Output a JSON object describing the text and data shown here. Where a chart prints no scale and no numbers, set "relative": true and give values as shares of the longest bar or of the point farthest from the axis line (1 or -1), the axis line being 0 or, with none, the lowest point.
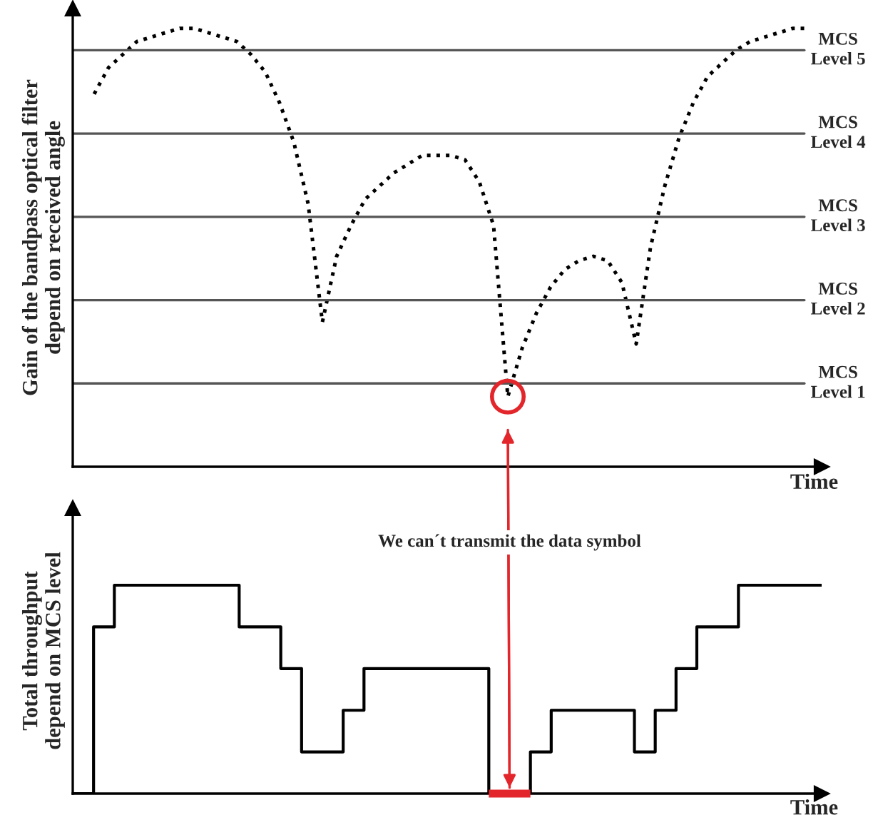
{
  "chart_data": [
    {
      "type": "line",
      "relative": true,
      "ylabel": "Gain of the bandpass optical filter\ndepend on received angle",
      "xlabel": "Time",
      "line_style": "dotted",
      "categories": [
        null,
        null,
        null,
        null,
        null,
        null,
        null,
        null,
        null,
        null,
        null,
        null,
        null,
        null,
        null,
        null,
        null,
        null,
        null,
        null,
        null,
        null,
        null,
        null,
        null,
        null,
        null,
        null,
        null,
        null,
        null,
        null,
        null,
        null,
        null,
        null,
        null,
        null,
        null,
        null,
        null,
        null,
        null,
        null,
        null,
        null,
        null,
        null,
        null,
        null,
        null
      ],
      "series": [
        {
          "color": "#000000",
          "values": [
            0.85,
            0.91,
            0.94,
            0.97,
            0.98,
            0.99,
            1,
            1,
            0.99,
            0.98,
            0.97,
            0.94,
            0.9,
            0.83,
            0.74,
            0.6,
            0.33,
            0.48,
            0.55,
            0.61,
            0.64,
            0.67,
            0.69,
            0.71,
            0.71,
            0.71,
            0.7,
            0.65,
            0.55,
            0.16,
            0.27,
            0.35,
            0.41,
            0.45,
            0.47,
            0.48,
            0.47,
            0.42,
            0.28,
            0.5,
            0.64,
            0.75,
            0.83,
            0.89,
            0.92,
            0.95,
            0.97,
            0.98,
            0.99,
            1,
            1
          ]
        }
      ],
      "ref_lines": [
        {
          "axis": "y",
          "value": 0.19,
          "label": "MCS\nLevel 1",
          "color": "#555555"
        },
        {
          "axis": "y",
          "value": 0.38,
          "label": "MCS\nLevel 2",
          "color": "#555555"
        },
        {
          "axis": "y",
          "value": 0.57,
          "label": "MCS\nLevel 3",
          "color": "#555555"
        },
        {
          "axis": "y",
          "value": 0.76,
          "label": "MCS\nLevel 4",
          "color": "#555555"
        },
        {
          "axis": "y",
          "value": 0.95,
          "label": "MCS\nLevel 5",
          "color": "#555555"
        }
      ]
    },
    {
      "type": "step",
      "relative": true,
      "ylabel": "Total throughput\ndepend on MCS level",
      "xlabel": "Time",
      "line_style": "solid",
      "categories": [
        null,
        null,
        null,
        null,
        null,
        null,
        null,
        null,
        null,
        null,
        null,
        null,
        null,
        null,
        null,
        null,
        null,
        null,
        null,
        null,
        null,
        null,
        null,
        null,
        null,
        null,
        null,
        null,
        null,
        null,
        null,
        null,
        null,
        null,
        null,
        null,
        null
      ],
      "series": [
        {
          "color": "#000000",
          "values": [
            0,
            0.8,
            1,
            1,
            1,
            1,
            1,
            1,
            0.8,
            0.8,
            0.6,
            0.2,
            0.2,
            0.4,
            0.6,
            0.6,
            0.6,
            0.6,
            0.6,
            0.6,
            0,
            0,
            0.2,
            0.4,
            0.4,
            0.4,
            0.4,
            0.2,
            0.4,
            0.6,
            0.8,
            0.8,
            1,
            1,
            1,
            1,
            1
          ]
        }
      ],
      "annotations": [
        "We can´t transmit the data symbol"
      ]
    }
  ]
}
